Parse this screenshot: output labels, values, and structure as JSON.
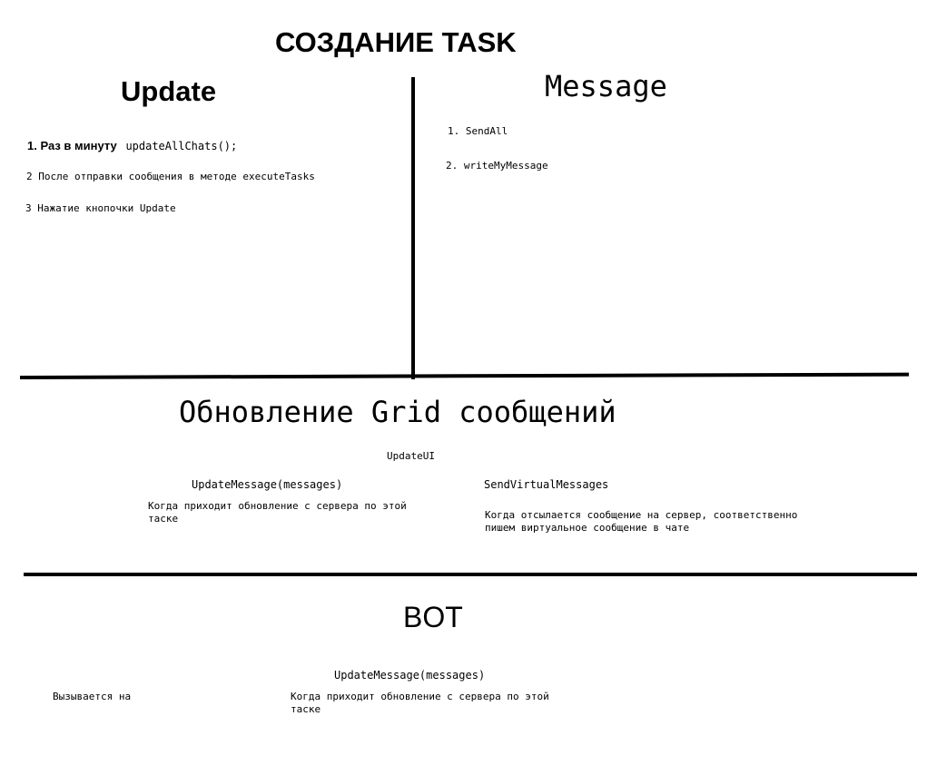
{
  "title": "СОЗДАНИЕ TASK",
  "update": {
    "heading": "Update",
    "item1_bold": "1. Раз в минуту",
    "item1_code": "updateAllChats();",
    "item2": "2 После отправки сообщения в методе executeTasks",
    "item3": "3 Нажатие кнопочки Update"
  },
  "message": {
    "heading": "Message",
    "item1": "1. SendAll",
    "item2": "2. writeMyMessage"
  },
  "grid": {
    "heading": "Обновление Grid сообщений",
    "update_ui": "UpdateUI",
    "left_method": "UpdateMessage(messages)",
    "left_desc_1": "Когда приходит обновление с сервера по этой",
    "left_desc_2": "таске",
    "right_method": "SendVirtualMessages",
    "right_desc_1": "Когда отсылается сообщение на сервер, соответственно",
    "right_desc_2": "пишем виртуальное сообщение в чате"
  },
  "bot": {
    "heading": "BOT",
    "called_on": "Вызывается на",
    "method": "UpdateMessage(messages)",
    "desc_1": "Когда приходит обновление с сервера по этой",
    "desc_2": "таске"
  }
}
